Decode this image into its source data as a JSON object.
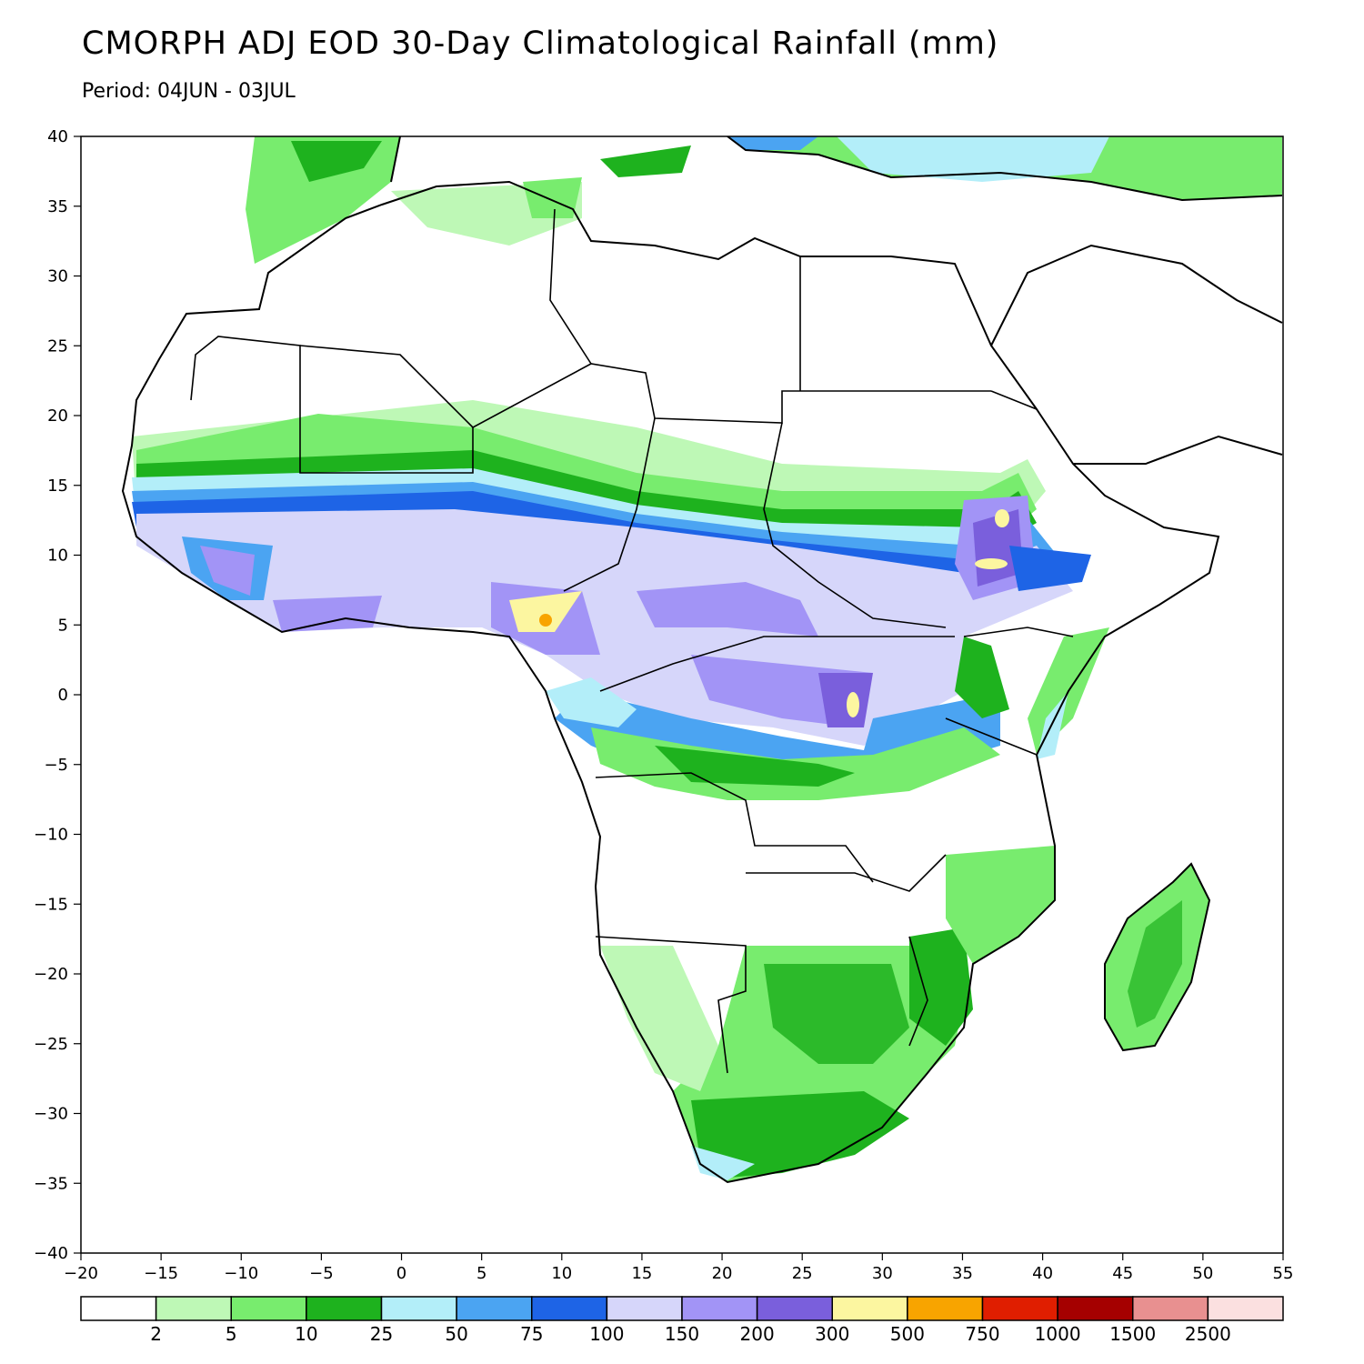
{
  "title": "CMORPH ADJ EOD 30-Day Climatological Rainfall (mm)",
  "subtitle": "Period: 04JUN - 03JUL",
  "map": {
    "lon_range": [
      -20,
      55
    ],
    "lat_range": [
      -40,
      40
    ],
    "lon_ticks": [
      -20,
      -15,
      -10,
      -5,
      0,
      5,
      10,
      15,
      20,
      25,
      30,
      35,
      40,
      45,
      50,
      55
    ],
    "lat_ticks": [
      40,
      35,
      30,
      25,
      20,
      15,
      10,
      5,
      0,
      -5,
      -10,
      -15,
      -20,
      -25,
      -30,
      -35,
      -40
    ],
    "lon_tick_labels": [
      "−20",
      "−15",
      "−10",
      "−5",
      "0",
      "5",
      "10",
      "15",
      "20",
      "25",
      "30",
      "35",
      "40",
      "45",
      "50",
      "55"
    ],
    "lat_tick_labels": [
      "40",
      "35",
      "30",
      "25",
      "20",
      "15",
      "10",
      "5",
      "0",
      "−5",
      "−10",
      "−15",
      "−20",
      "−25",
      "−30",
      "−35",
      "−40"
    ]
  },
  "legend": {
    "colors": [
      "#ffffff",
      "#bef8b6",
      "#78ec6e",
      "#1eb21e",
      "#b3eef9",
      "#4ba4f2",
      "#1e64e6",
      "#d6d6fa",
      "#a294f6",
      "#7a5fdc",
      "#fcf6a0",
      "#f8a400",
      "#e01e00",
      "#a50000",
      "#e89090",
      "#fbe0e0"
    ],
    "labels": [
      "2",
      "5",
      "10",
      "25",
      "50",
      "75",
      "100",
      "150",
      "200",
      "300",
      "500",
      "750",
      "1000",
      "1500",
      "2500"
    ]
  }
}
